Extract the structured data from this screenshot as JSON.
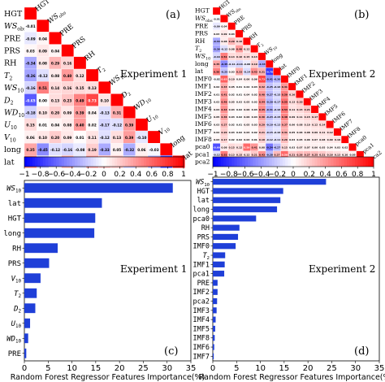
{
  "chart_data": [
    {
      "type": "heatmap",
      "panel_label": "(a)",
      "experiment_label": "Experiment 1",
      "variables": [
        "HGT",
        "WSobs",
        "PRE",
        "PRS",
        "RH",
        "T2",
        "WS10",
        "D2",
        "WD10",
        "U10",
        "V10",
        "long",
        "lat"
      ],
      "row_labels": [
        "HGT",
        "WSobs",
        "PRE",
        "PRS",
        "RH",
        "T2",
        "WS10",
        "D2",
        "WD10",
        "U10",
        "V10",
        "long",
        "lat"
      ],
      "diagonal_labels": [
        "HGT",
        "WSobs",
        "PRE",
        "PRS",
        "RH",
        "T2",
        "WS10",
        "D2",
        "WD10",
        "U10",
        "V10",
        "long",
        "lat"
      ],
      "cell_values": [
        [],
        [
          -0.01
        ],
        [
          -0.09,
          0.04
        ],
        [
          0.03,
          0.09,
          0.04
        ],
        [
          -0.34,
          0.08,
          0.29,
          0.16
        ],
        [
          -0.36,
          -0.12,
          0.08,
          0.4,
          0.12
        ],
        [
          -0.16,
          0.51,
          0.14,
          0.16,
          0.15,
          0.13
        ],
        [
          -0.65,
          0.0,
          0.13,
          0.23,
          0.49,
          0.73,
          0.1
        ],
        [
          -0.18,
          0.1,
          0.2,
          0.09,
          0.39,
          0.04,
          -0.13,
          0.31
        ],
        [
          0.15,
          0.01,
          0.04,
          0.08,
          0.4,
          0.02,
          -0.17,
          -0.12,
          0.39
        ],
        [
          0.06,
          0.1,
          0.2,
          0.09,
          0.01,
          0.11,
          -0.12,
          0.13,
          0.39,
          -0.1
        ],
        [
          0.35,
          -0.45,
          -0.12,
          -0.16,
          -0.08,
          0.19,
          -0.33,
          0.05,
          -0.32,
          0.06,
          -0.03
        ],
        [
          0.5,
          -0.25,
          0.03,
          0.33,
          -0.14,
          0.43,
          0.31,
          0.25,
          -0.23,
          0.19,
          -0.32,
          -0.78
        ]
      ],
      "colorbar_ticks": [
        "−1",
        "−0.8",
        "−0.6",
        "−0.4",
        "−0.2",
        "0",
        "0.2",
        "0.4",
        "0.6",
        "0.8",
        "1"
      ],
      "colorbar_range": [
        -1,
        1
      ]
    },
    {
      "type": "heatmap",
      "panel_label": "(b)",
      "experiment_label": "Experiment 2",
      "variables": [
        "HGT",
        "WSobs",
        "PRE",
        "PRS",
        "RH",
        "T2",
        "WS10",
        "long",
        "lat",
        "IMF0",
        "IMF1",
        "IMF2",
        "IMF3",
        "IMF4",
        "IMF5",
        "IMF6",
        "IMF7",
        "IMF8",
        "pca0",
        "pca1",
        "pca2"
      ],
      "row_labels": [
        "HGT",
        "WSobs",
        "PRE",
        "PRS",
        "RH",
        "T2",
        "WS10",
        "long",
        "lat",
        "IMF0",
        "IMF1",
        "IMF2",
        "IMF3",
        "IMF4",
        "IMF5",
        "IMF6",
        "IMF7",
        "IMF8",
        "pca0",
        "pca1",
        "pca2"
      ],
      "diagonal_labels": [
        "HGT",
        "WSobs",
        "PRE",
        "PRS",
        "RH",
        "T2",
        "WS10",
        "long",
        "lat",
        "IMF0",
        "IMF1",
        "IMF2",
        "IMF3",
        "IMF4",
        "IMF5",
        "IMF6",
        "IMF7",
        "IMF8",
        "pca0",
        "pca1",
        "pca2"
      ],
      "cell_values": [
        [],
        [
          -0.01
        ],
        [
          -0.09,
          0.04
        ],
        [
          0.03,
          0.09,
          0.04
        ],
        [
          -0.34,
          0.08,
          0.29,
          0.16
        ],
        [
          -0.36,
          -0.12,
          0.08,
          0.4,
          0.12
        ],
        [
          -0.16,
          0.51,
          0.14,
          0.16,
          0.15,
          0.13
        ],
        [
          0.35,
          -0.45,
          -0.12,
          -0.16,
          -0.08,
          0.19,
          -0.33
        ],
        [
          0.5,
          -0.25,
          0.03,
          0.33,
          -0.14,
          0.43,
          0.31,
          -0.78
        ],
        [
          -0.02,
          0.63,
          0.1,
          0.04,
          0.06,
          0.06,
          0.73,
          -0.41,
          -0.3
        ],
        [
          0.02,
          0.33,
          0.05,
          0.01,
          0.02,
          0.03,
          0.32,
          -0.25,
          -0.16,
          0.41
        ],
        [
          0.01,
          0.41,
          0.02,
          0.01,
          0.04,
          0.02,
          0.4,
          -0.27,
          -0.15,
          0.5,
          0.16
        ],
        [
          0.02,
          0.46,
          0.05,
          0.03,
          0.05,
          0.02,
          0.44,
          -0.29,
          -0.17,
          0.55,
          0.13,
          0.2
        ],
        [
          0.04,
          0.44,
          0.04,
          0.02,
          0.06,
          0.03,
          0.45,
          -0.31,
          -0.16,
          0.53,
          0.11,
          0.15,
          0.21
        ],
        [
          0.05,
          0.36,
          0.03,
          0.02,
          0.06,
          0.04,
          0.36,
          -0.23,
          -0.15,
          0.48,
          0.09,
          0.11,
          0.15,
          0.17
        ],
        [
          0.03,
          0.27,
          0.02,
          0.01,
          0.05,
          0.03,
          0.29,
          -0.19,
          -0.13,
          0.37,
          0.06,
          0.08,
          0.1,
          0.12,
          0.14
        ],
        [
          0.02,
          0.2,
          0.03,
          0.02,
          0.04,
          0.02,
          0.21,
          -0.15,
          -0.1,
          0.31,
          0.05,
          0.06,
          0.08,
          0.09,
          0.11,
          0.12
        ],
        [
          0.03,
          0.17,
          0.02,
          0.02,
          0.04,
          0.01,
          0.18,
          -0.12,
          -0.11,
          0.26,
          0.04,
          0.05,
          0.06,
          0.07,
          0.08,
          0.09,
          0.1
        ],
        [
          -0.69,
          0.08,
          0.15,
          0.12,
          0.59,
          0.41,
          0.08,
          -0.54,
          -0.27,
          0.15,
          0.03,
          0.07,
          0.07,
          0.06,
          0.05,
          0.04,
          0.03,
          0.02
        ],
        [
          -0.12,
          0.52,
          0.13,
          0.15,
          0.12,
          0.21,
          0.43,
          -0.28,
          0.27,
          0.59,
          0.21,
          0.26,
          0.27,
          0.25,
          0.21,
          0.16,
          0.13,
          0.1,
          0.05
        ],
        [
          0.21,
          0.11,
          0.06,
          0.31,
          -0.19,
          0.54,
          0.02,
          0.31,
          0.42,
          0.08,
          0.02,
          0.03,
          0.04,
          0.03,
          0.03,
          0.02,
          0.02,
          0.01,
          -0.06,
          0.04
        ]
      ],
      "colorbar_ticks": [
        "−1",
        "−0.8",
        "−0.6",
        "−0.4",
        "−0.2",
        "0",
        "0.2",
        "0.4",
        "0.6",
        "0.8",
        "1"
      ],
      "colorbar_range": [
        -1,
        1
      ]
    },
    {
      "type": "bar",
      "orientation": "horizontal",
      "panel_label": "(c)",
      "experiment_label": "Experiment 1",
      "categories": [
        "WS10",
        "lat",
        "HGT",
        "long",
        "RH",
        "PRS",
        "V10",
        "T2",
        "D2",
        "U10",
        "WD10",
        "PRE"
      ],
      "values": [
        31.2,
        16.3,
        14.9,
        14.7,
        7.0,
        5.2,
        3.4,
        2.6,
        2.3,
        1.2,
        0.8,
        0.4
      ],
      "xlabel": "Random Forest Regressor Features Importance(%)",
      "xlim": [
        0,
        35
      ],
      "xticks": [
        0,
        5,
        10,
        15,
        20,
        25,
        30,
        35
      ]
    },
    {
      "type": "bar",
      "orientation": "horizontal",
      "panel_label": "(d)",
      "experiment_label": "Experiment 2",
      "categories": [
        "WS10",
        "HGT",
        "lat",
        "long",
        "pca0",
        "RH",
        "PRS",
        "IMF0",
        "T2",
        "IMF1",
        "pca1",
        "PRE",
        "IMF2",
        "pca2",
        "IMF3",
        "IMF4",
        "IMF5",
        "IMF8",
        "IMF6",
        "IMF7"
      ],
      "values": [
        23.8,
        14.8,
        14.2,
        13.5,
        9.1,
        5.6,
        5.3,
        4.8,
        2.6,
        2.5,
        2.4,
        1.0,
        1.0,
        0.9,
        0.8,
        0.6,
        0.5,
        0.4,
        0.3,
        0.2
      ],
      "xlabel": "Random Forest Regressor Features Importance(%)",
      "xlim": [
        0,
        35
      ],
      "xticks": [
        0,
        5,
        10,
        15,
        20,
        25,
        30,
        35
      ]
    }
  ]
}
